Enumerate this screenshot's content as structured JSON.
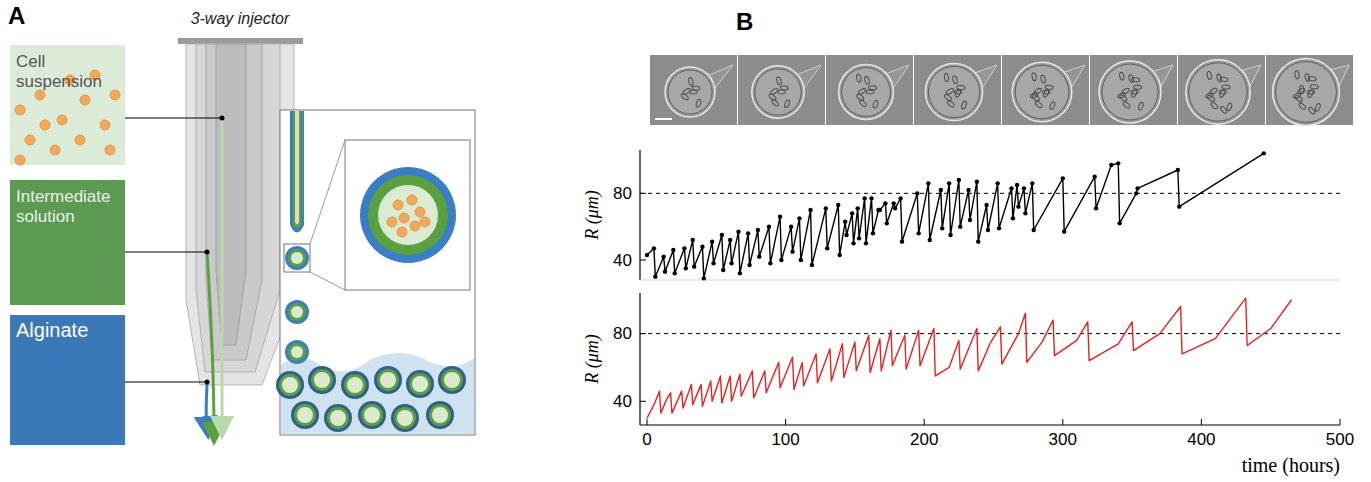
{
  "diagram": {
    "letter": "A",
    "injector_label": "3-way injector",
    "inputs": [
      {
        "label": "Cell suspension"
      },
      {
        "label": "Intermediate solution"
      },
      {
        "label": "Alginate"
      }
    ]
  },
  "panel_b": {
    "letter": "B"
  },
  "chart_data": [
    {
      "type": "line",
      "ylabel": "R (μm)",
      "x": [
        0,
        5,
        6,
        12,
        13,
        19,
        20,
        27,
        28,
        33,
        34,
        40,
        41,
        47,
        48,
        54,
        55,
        60,
        61,
        66,
        67,
        73,
        74,
        80,
        81,
        88,
        89,
        96,
        97,
        104,
        105,
        110,
        111,
        118,
        119,
        129,
        130,
        138,
        139,
        143,
        144,
        148,
        149,
        152,
        153,
        157,
        158,
        162,
        163,
        167,
        168,
        172,
        173,
        178,
        179,
        183,
        184,
        195,
        196,
        203,
        204,
        212,
        213,
        218,
        219,
        225,
        226,
        232,
        233,
        238,
        239,
        245,
        246,
        253,
        254,
        263,
        264,
        267,
        268,
        272,
        273,
        278,
        279,
        300,
        301,
        323,
        324,
        335,
        340,
        341,
        353,
        354,
        383,
        384,
        445
      ],
      "series": [
        {
          "color": "#000000",
          "marker": "circle",
          "values": [
            43,
            47,
            30,
            42,
            33,
            46,
            32,
            47,
            35,
            52,
            36,
            48,
            29,
            51,
            38,
            55,
            34,
            52,
            38,
            57,
            32,
            56,
            37,
            58,
            42,
            60,
            38,
            66,
            40,
            60,
            45,
            65,
            40,
            70,
            37,
            71,
            47,
            73,
            43,
            63,
            55,
            68,
            50,
            71,
            53,
            77,
            50,
            77,
            56,
            70,
            70,
            74,
            62,
            74,
            71,
            77,
            51,
            80,
            56,
            86,
            52,
            82,
            59,
            86,
            55,
            88,
            60,
            82,
            64,
            87,
            51,
            73,
            58,
            86,
            59,
            83,
            65,
            85,
            72,
            83,
            68,
            86,
            58,
            89,
            57,
            90,
            71,
            97,
            98,
            62,
            80,
            83,
            94,
            72,
            104
          ]
        }
      ],
      "xlim": [
        0,
        500
      ],
      "ylim": [
        28,
        106
      ],
      "yticks": [
        40,
        80
      ],
      "tick_labels": "y",
      "hline": 80
    },
    {
      "type": "line",
      "ylabel": "R (μm)",
      "xlabel": "time (hours)",
      "x": [
        0,
        5,
        9,
        10,
        14,
        17,
        18,
        25,
        26,
        32,
        33,
        39,
        40,
        46,
        47,
        53,
        54,
        60,
        61,
        67,
        68,
        76,
        77,
        85,
        86,
        95,
        96,
        105,
        106,
        112,
        113,
        122,
        123,
        132,
        133,
        141,
        142,
        150,
        151,
        160,
        161,
        168,
        169,
        176,
        177,
        186,
        187,
        196,
        197,
        207,
        208,
        218,
        225,
        226,
        238,
        239,
        248,
        255,
        256,
        268,
        273,
        274,
        285,
        293,
        294,
        310,
        318,
        319,
        340,
        350,
        351,
        370,
        385,
        386,
        410,
        432,
        433,
        450,
        465
      ],
      "series": [
        {
          "color": "#e8211e",
          "marker": "none",
          "values": [
            30,
            38,
            46,
            33,
            41,
            45,
            33,
            46,
            36,
            50,
            38,
            50,
            37,
            52,
            40,
            55,
            39,
            55,
            40,
            56,
            43,
            58,
            42,
            58,
            45,
            63,
            48,
            66,
            47,
            63,
            49,
            68,
            51,
            71,
            52,
            74,
            54,
            75,
            58,
            79,
            57,
            77,
            58,
            82,
            61,
            79,
            59,
            82,
            61,
            83,
            55,
            60,
            76,
            59,
            83,
            58,
            75,
            84,
            62,
            80,
            92,
            63,
            75,
            88,
            67,
            76,
            87,
            64,
            74,
            87,
            70,
            80,
            96,
            68,
            77,
            101,
            73,
            83,
            100
          ]
        }
      ],
      "xlim": [
        0,
        500
      ],
      "ylim": [
        26,
        104
      ],
      "xticks": [
        0,
        100,
        200,
        300,
        400,
        500
      ],
      "yticks": [
        40,
        80
      ],
      "hline": 80
    }
  ]
}
